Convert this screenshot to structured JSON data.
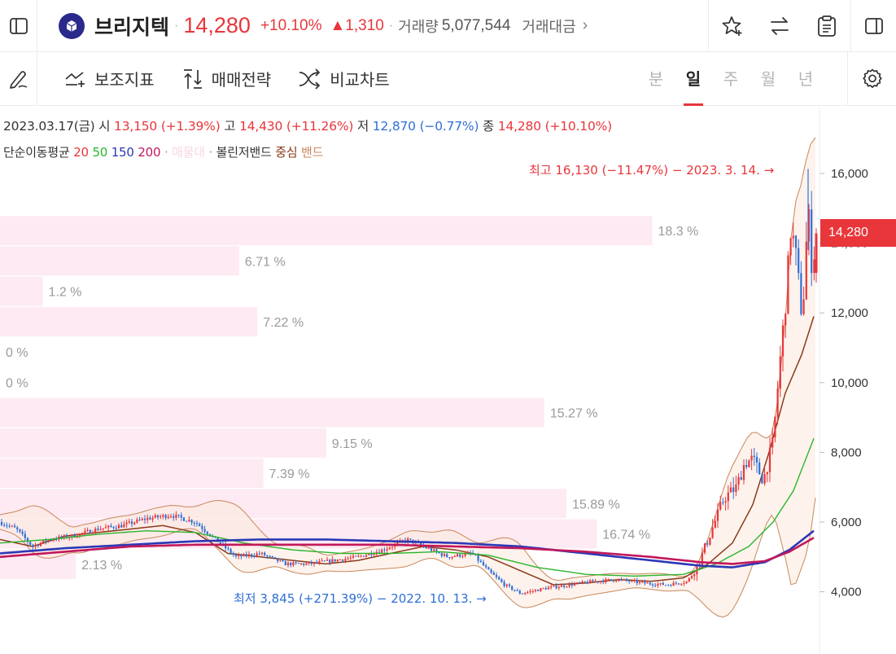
{
  "header": {
    "stock_name": "브리지텍",
    "separator": "·",
    "price": "14,280",
    "change_pct": "+10.10%",
    "change_abs": "▲1,310",
    "volume_label": "거래량",
    "volume_value": "5,077,544",
    "amount_label": "거래대금",
    "more": "›"
  },
  "toolbar": {
    "indicator_label": "보조지표",
    "strategy_label": "매매전략",
    "compare_label": "비교차트",
    "periods": [
      "분",
      "일",
      "주",
      "월",
      "년"
    ],
    "active_period": "일"
  },
  "ohlc": {
    "date": "2023.03.17(금)",
    "open_label": "시",
    "open": "13,150",
    "open_pct": "(+1.39%)",
    "high_label": "고",
    "high": "14,430",
    "high_pct": "(+11.26%)",
    "low_label": "저",
    "low": "12,870",
    "low_pct": "(−0.77%)",
    "close_label": "종",
    "close": "14,280",
    "close_pct": "(+10.10%)"
  },
  "legend": {
    "ma_label": "단순이동평균",
    "ma_periods": [
      "20",
      "50",
      "150",
      "200"
    ],
    "vp_label": "매물대",
    "bb_label": "볼린저밴드",
    "bb_center": "중심",
    "bb_band": "밴드"
  },
  "annotations": {
    "high": "최고 16,130 (−11.47%) − 2023. 3. 14. →",
    "low": "최저 3,845 (+271.39%) − 2022. 10. 13. →"
  },
  "price_tag": "14,280",
  "colors": {
    "up": "#e8363b",
    "down": "#2f6fd6",
    "ma20": "#e8363b",
    "ma50": "#2bb52b",
    "ma150": "#2b38b5",
    "ma200": "#c2185b",
    "bb_center": "#8b3a1a",
    "bb_band": "#c8875a",
    "volume_profile": "#fdeaf3"
  },
  "chart_data": {
    "type": "candlestick",
    "y_ticks": [
      "16,000",
      "14,000",
      "12,000",
      "10,000",
      "8,000",
      "6,000",
      "4,000"
    ],
    "y_tick_values": [
      16000,
      14000,
      12000,
      10000,
      8000,
      6000,
      4000
    ],
    "ylim": [
      2700,
      16900
    ],
    "volume_profile": {
      "labels": [
        "18.3 %",
        "6.71 %",
        "1.2 %",
        "7.22 %",
        "0 %",
        "0 %",
        "15.27 %",
        "9.15 %",
        "7.39 %",
        "15.89 %",
        "16.74 %",
        "2.13 %"
      ],
      "percent": [
        18.3,
        6.71,
        1.2,
        7.22,
        0,
        0,
        15.27,
        9.15,
        7.39,
        15.89,
        16.74,
        2.13
      ],
      "price_mid": [
        14360,
        13490,
        12620,
        11750,
        10880,
        10010,
        9140,
        8270,
        7400,
        6530,
        5660,
        4790
      ]
    },
    "ma_lines": {
      "ma20_key": [
        [
          0,
          5500
        ],
        [
          40,
          5300
        ],
        [
          80,
          5600
        ],
        [
          120,
          5700
        ],
        [
          160,
          5800
        ],
        [
          200,
          5900
        ],
        [
          240,
          5700
        ],
        [
          280,
          5100
        ],
        [
          320,
          5000
        ],
        [
          360,
          4900
        ],
        [
          400,
          4800
        ],
        [
          440,
          4900
        ],
        [
          480,
          5100
        ],
        [
          520,
          5300
        ],
        [
          560,
          5200
        ],
        [
          600,
          5000
        ],
        [
          640,
          4600
        ],
        [
          680,
          4200
        ],
        [
          720,
          4250
        ],
        [
          760,
          4350
        ],
        [
          800,
          4300
        ],
        [
          840,
          4400
        ],
        [
          870,
          4800
        ],
        [
          900,
          5400
        ],
        [
          925,
          6500
        ],
        [
          945,
          8000
        ],
        [
          965,
          9700
        ],
        [
          985,
          10800
        ],
        [
          1000,
          11900
        ]
      ],
      "ma50_key": [
        [
          0,
          5400
        ],
        [
          60,
          5500
        ],
        [
          120,
          5650
        ],
        [
          180,
          5750
        ],
        [
          240,
          5700
        ],
        [
          300,
          5400
        ],
        [
          360,
          5200
        ],
        [
          420,
          5100
        ],
        [
          480,
          5100
        ],
        [
          540,
          5150
        ],
        [
          600,
          5050
        ],
        [
          660,
          4700
        ],
        [
          720,
          4500
        ],
        [
          780,
          4450
        ],
        [
          840,
          4500
        ],
        [
          880,
          4800
        ],
        [
          920,
          5300
        ],
        [
          950,
          6000
        ],
        [
          975,
          6900
        ],
        [
          1000,
          8400
        ]
      ],
      "ma150_key": [
        [
          0,
          5100
        ],
        [
          80,
          5250
        ],
        [
          160,
          5350
        ],
        [
          240,
          5450
        ],
        [
          320,
          5500
        ],
        [
          400,
          5500
        ],
        [
          480,
          5450
        ],
        [
          560,
          5400
        ],
        [
          640,
          5300
        ],
        [
          720,
          5100
        ],
        [
          800,
          4900
        ],
        [
          860,
          4750
        ],
        [
          900,
          4700
        ],
        [
          940,
          4850
        ],
        [
          970,
          5200
        ],
        [
          1000,
          5750
        ]
      ],
      "ma200_key": [
        [
          0,
          5000
        ],
        [
          80,
          5150
        ],
        [
          160,
          5300
        ],
        [
          240,
          5350
        ],
        [
          320,
          5350
        ],
        [
          400,
          5350
        ],
        [
          480,
          5350
        ],
        [
          560,
          5300
        ],
        [
          640,
          5250
        ],
        [
          720,
          5150
        ],
        [
          800,
          5000
        ],
        [
          860,
          4850
        ],
        [
          900,
          4800
        ],
        [
          940,
          4880
        ],
        [
          970,
          5150
        ],
        [
          1000,
          5550
        ]
      ]
    },
    "high_point": {
      "date": "2023. 3. 14.",
      "value": 16130
    },
    "low_point": {
      "date": "2022. 10. 13.",
      "value": 3845
    },
    "last": {
      "open": 13150,
      "high": 14430,
      "low": 12870,
      "close": 14280
    }
  }
}
